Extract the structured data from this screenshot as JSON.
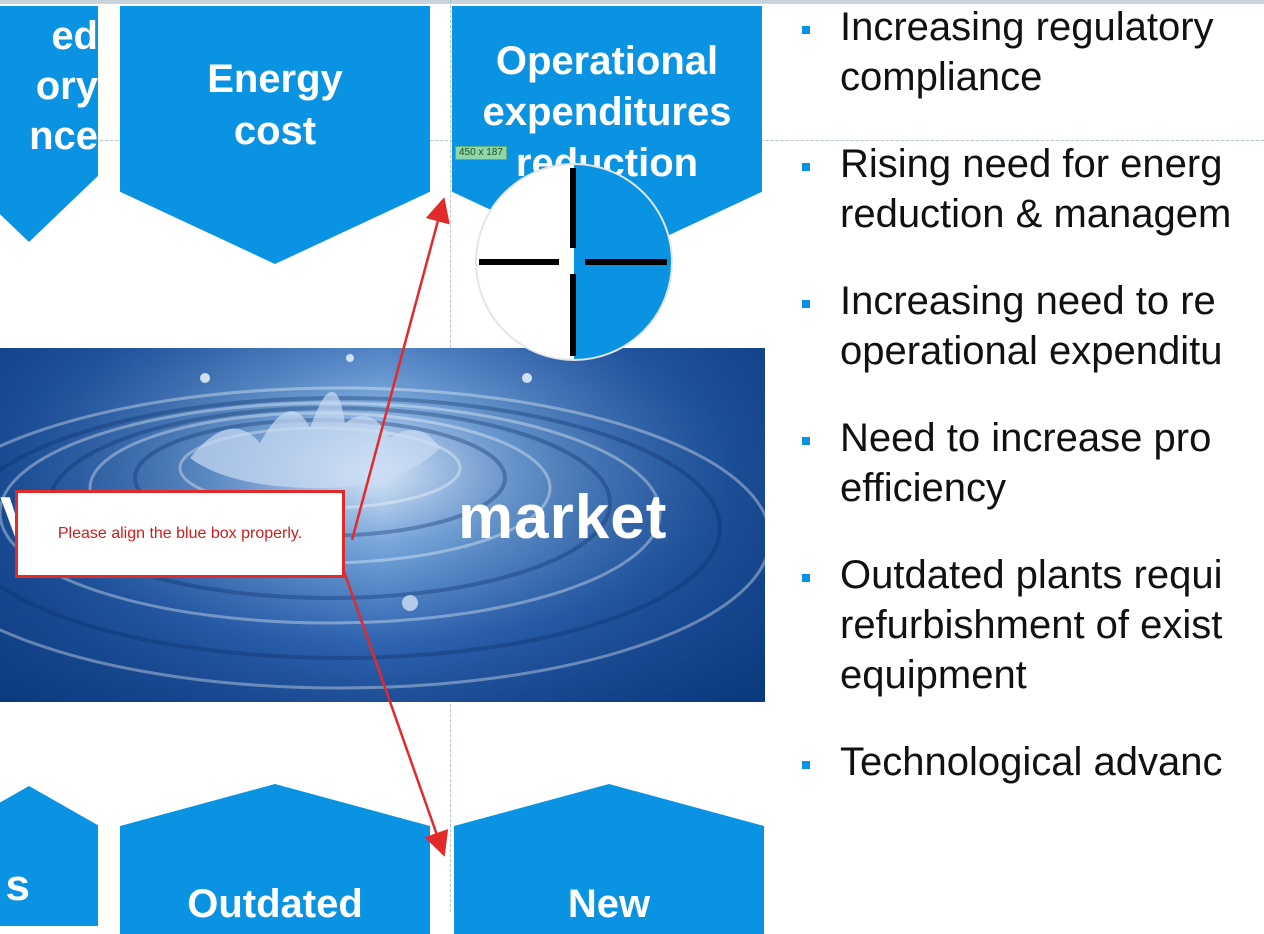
{
  "top_tiles": [
    {
      "lines": [
        "ed",
        "ory",
        "nce"
      ]
    },
    {
      "lines": [
        "Energy",
        "cost"
      ]
    },
    {
      "lines": [
        "Operational",
        "expenditures",
        "reduction"
      ]
    }
  ],
  "bottom_tiles": [
    {
      "lines": [
        "s"
      ]
    },
    {
      "lines": [
        "Outdated"
      ]
    },
    {
      "lines": [
        "New"
      ]
    }
  ],
  "image": {
    "caption": "market",
    "left_fragment": "V"
  },
  "size_badge": "450 x 187",
  "bullets": [
    "Increasing regulatory\ncompliance",
    "Rising need for energ\nreduction & managem",
    "Increasing need to re\noperational expenditu",
    "Need to increase pro\nefficiency",
    "Outdated plants requi\nrefurbishment of exist\nequipment",
    "Technological advanc"
  ],
  "annotation": {
    "text": "Please align the blue box properly.",
    "color": "#e12a2a"
  },
  "colors": {
    "tile_blue": "#0a93e3",
    "bullet_blue": "#0a93e3"
  }
}
